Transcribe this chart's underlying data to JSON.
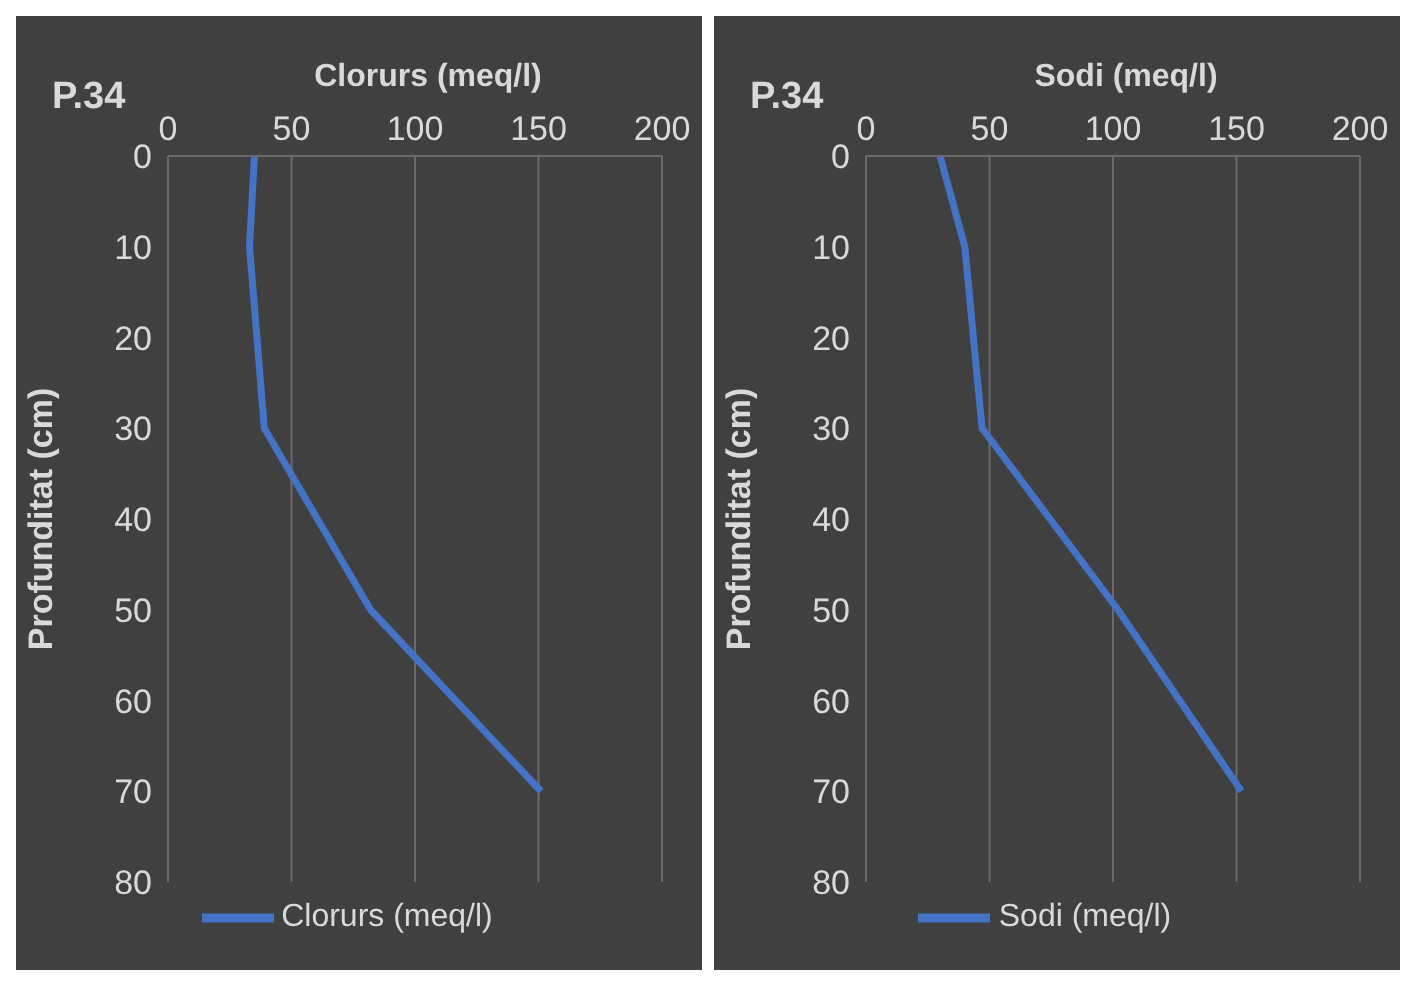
{
  "chart_data": [
    {
      "type": "line",
      "title": "P.34",
      "xlabel": "Clorurs (meq/l)",
      "ylabel": "Profunditat (cm)",
      "xlim": [
        0,
        200
      ],
      "xticks": [
        0,
        50,
        100,
        150,
        200
      ],
      "ylim": [
        80,
        0
      ],
      "yticks": [
        0,
        10,
        20,
        30,
        40,
        50,
        60,
        70,
        80
      ],
      "grid": "x",
      "legend": "bottom",
      "marker": "none",
      "series": [
        {
          "name": "Clorurs (meq/l)",
          "color": "#4472c4",
          "x": [
            35,
            33,
            39,
            82,
            151
          ],
          "values": [
            0,
            10,
            30,
            50,
            70
          ]
        }
      ]
    },
    {
      "type": "line",
      "title": "P.34",
      "xlabel": "Sodi (meq/l)",
      "ylabel": "Profunditat (cm)",
      "xlim": [
        0,
        200
      ],
      "xticks": [
        0,
        50,
        100,
        150,
        200
      ],
      "ylim": [
        80,
        0
      ],
      "yticks": [
        0,
        10,
        20,
        30,
        40,
        50,
        60,
        70,
        80
      ],
      "grid": "x",
      "legend": "bottom",
      "marker": "none",
      "series": [
        {
          "name": "Sodi (meq/l)",
          "color": "#4472c4",
          "x": [
            30,
            40,
            47,
            102,
            152
          ],
          "values": [
            0,
            10,
            30,
            50,
            70
          ]
        }
      ]
    }
  ]
}
